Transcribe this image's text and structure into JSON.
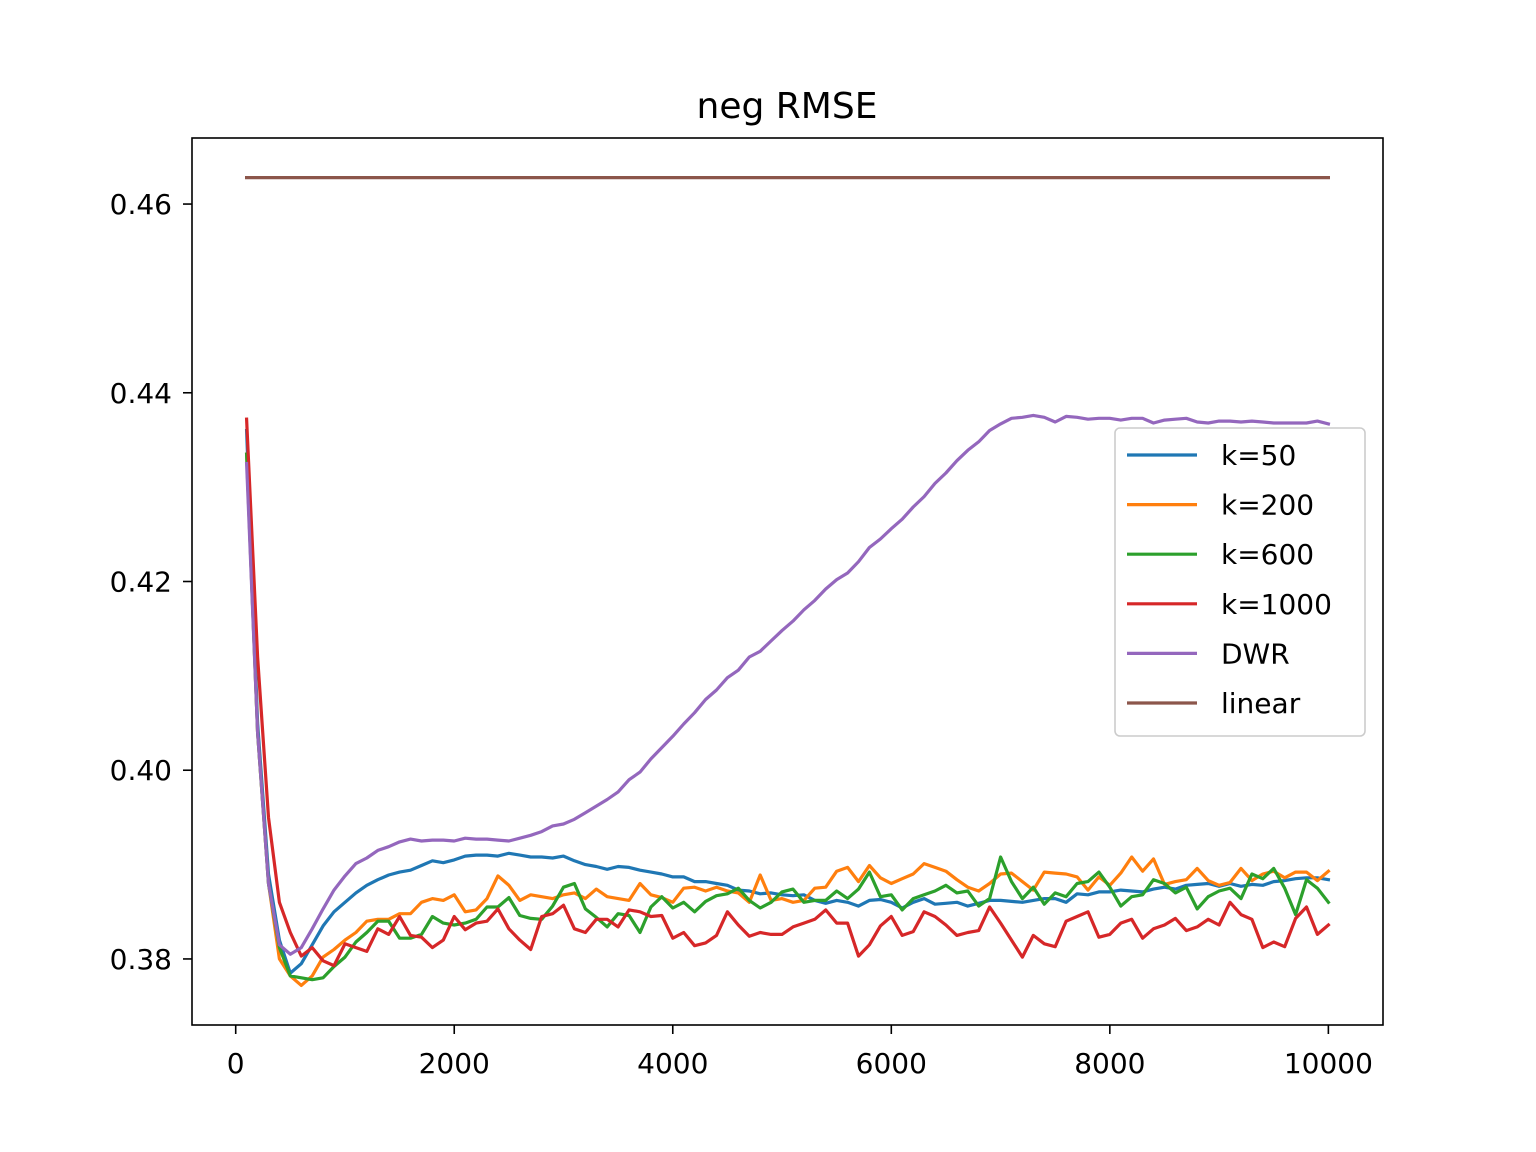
{
  "chart_data": {
    "type": "line",
    "title": "neg RMSE",
    "xlabel": "",
    "ylabel": "",
    "xlim": [
      -400,
      10500
    ],
    "ylim": [
      0.373,
      0.467
    ],
    "xticks": [
      0,
      2000,
      4000,
      6000,
      8000,
      10000
    ],
    "xtick_labels": [
      "0",
      "2000",
      "4000",
      "6000",
      "8000",
      "10000"
    ],
    "yticks": [
      0.38,
      0.4,
      0.42,
      0.44,
      0.46
    ],
    "ytick_labels": [
      "0.38",
      "0.40",
      "0.42",
      "0.44",
      "0.46"
    ],
    "grid": false,
    "legend_position": "center-right",
    "x": [
      100,
      200,
      300,
      400,
      500,
      600,
      700,
      800,
      900,
      1000,
      1100,
      1200,
      1300,
      1400,
      1500,
      1600,
      1700,
      1800,
      1900,
      2000,
      2100,
      2200,
      2300,
      2400,
      2500,
      2600,
      2700,
      2800,
      2900,
      3000,
      3100,
      3200,
      3300,
      3400,
      3500,
      3600,
      3700,
      3800,
      3900,
      4000,
      4100,
      4200,
      4300,
      4400,
      4500,
      4600,
      4700,
      4800,
      4900,
      5000,
      5100,
      5200,
      5300,
      5400,
      5500,
      5600,
      5700,
      5800,
      5900,
      6000,
      6100,
      6200,
      6300,
      6400,
      6500,
      6600,
      6700,
      6800,
      6900,
      7000,
      7100,
      7200,
      7300,
      7400,
      7500,
      7600,
      7700,
      7800,
      7900,
      8000,
      8100,
      8200,
      8300,
      8400,
      8500,
      8600,
      8700,
      8800,
      8900,
      9000,
      9100,
      9200,
      9300,
      9400,
      9500,
      9600,
      9700,
      9800,
      9900,
      10000
    ],
    "series": [
      {
        "name": "k=50",
        "color": "#1f77b4",
        "values": [
          0.436,
          0.405,
          0.389,
          0.382,
          0.3785,
          0.3795,
          0.3815,
          0.3835,
          0.385,
          0.386,
          0.387,
          0.3878,
          0.3884,
          0.3889,
          0.3892,
          0.3894,
          0.3899,
          0.3904,
          0.3902,
          0.3905,
          0.3909,
          0.391,
          0.391,
          0.3909,
          0.3912,
          0.391,
          0.3908,
          0.3908,
          0.3907,
          0.3909,
          0.3904,
          0.39,
          0.3898,
          0.3895,
          0.3898,
          0.3897,
          0.3894,
          0.3892,
          0.389,
          0.3887,
          0.3887,
          0.3882,
          0.3882,
          0.388,
          0.3878,
          0.3873,
          0.3872,
          0.3869,
          0.387,
          0.3868,
          0.3867,
          0.3868,
          0.3862,
          0.3859,
          0.3862,
          0.386,
          0.3856,
          0.3862,
          0.3863,
          0.386,
          0.3854,
          0.386,
          0.3864,
          0.3858,
          0.3859,
          0.386,
          0.3856,
          0.3859,
          0.3862,
          0.3862,
          0.3861,
          0.386,
          0.3862,
          0.3864,
          0.3864,
          0.386,
          0.3869,
          0.3868,
          0.3871,
          0.3871,
          0.3873,
          0.3872,
          0.3871,
          0.3874,
          0.3876,
          0.3874,
          0.3878,
          0.3879,
          0.388,
          0.3877,
          0.388,
          0.3877,
          0.3879,
          0.3878,
          0.3882,
          0.3883,
          0.3885,
          0.3886,
          0.3886,
          0.3884
        ]
      },
      {
        "name": "k=200",
        "color": "#ff7f0e",
        "values": [
          0.4335,
          0.404,
          0.388,
          0.38,
          0.3782,
          0.3772,
          0.3782,
          0.3802,
          0.381,
          0.382,
          0.3828,
          0.384,
          0.3842,
          0.3842,
          0.3848,
          0.3848,
          0.386,
          0.3864,
          0.3862,
          0.3868,
          0.385,
          0.3852,
          0.3864,
          0.3888,
          0.3878,
          0.3862,
          0.3868,
          0.3866,
          0.3864,
          0.3868,
          0.387,
          0.3864,
          0.3874,
          0.3866,
          0.3864,
          0.3862,
          0.388,
          0.3868,
          0.3865,
          0.386,
          0.3875,
          0.3876,
          0.3872,
          0.3876,
          0.3872,
          0.387,
          0.386,
          0.3889,
          0.3862,
          0.3864,
          0.386,
          0.3862,
          0.3875,
          0.3876,
          0.3893,
          0.3897,
          0.3882,
          0.3899,
          0.3886,
          0.388,
          0.3885,
          0.389,
          0.3901,
          0.3897,
          0.3893,
          0.3884,
          0.3876,
          0.3872,
          0.388,
          0.389,
          0.3891,
          0.3882,
          0.3873,
          0.3892,
          0.3891,
          0.389,
          0.3887,
          0.3873,
          0.3887,
          0.3878,
          0.3891,
          0.3908,
          0.3893,
          0.3906,
          0.3879,
          0.3882,
          0.3884,
          0.3896,
          0.3883,
          0.3878,
          0.3881,
          0.3896,
          0.3883,
          0.389,
          0.3893,
          0.3886,
          0.3892,
          0.3892,
          0.3883,
          0.3893
        ]
      },
      {
        "name": "k=600",
        "color": "#2ca02c",
        "values": [
          0.4335,
          0.404,
          0.388,
          0.3812,
          0.3782,
          0.378,
          0.3778,
          0.378,
          0.3792,
          0.3802,
          0.3818,
          0.3828,
          0.384,
          0.384,
          0.3822,
          0.3822,
          0.3826,
          0.3845,
          0.3838,
          0.3836,
          0.3838,
          0.3842,
          0.3855,
          0.3855,
          0.3865,
          0.3846,
          0.3843,
          0.3842,
          0.3856,
          0.3876,
          0.388,
          0.3853,
          0.3844,
          0.3834,
          0.3848,
          0.3846,
          0.3828,
          0.3855,
          0.3866,
          0.3854,
          0.386,
          0.385,
          0.3861,
          0.3867,
          0.3869,
          0.3875,
          0.3862,
          0.3854,
          0.386,
          0.3871,
          0.3874,
          0.386,
          0.3862,
          0.3862,
          0.3872,
          0.3864,
          0.3874,
          0.3892,
          0.3866,
          0.3868,
          0.3852,
          0.3864,
          0.3868,
          0.3872,
          0.3878,
          0.387,
          0.3872,
          0.3856,
          0.3864,
          0.3908,
          0.3882,
          0.3864,
          0.3876,
          0.3858,
          0.387,
          0.3866,
          0.388,
          0.3882,
          0.3892,
          0.3876,
          0.3856,
          0.3866,
          0.3868,
          0.3884,
          0.388,
          0.387,
          0.3876,
          0.3853,
          0.3866,
          0.3872,
          0.3875,
          0.3864,
          0.389,
          0.3885,
          0.3896,
          0.3875,
          0.3847,
          0.3884,
          0.3875,
          0.386
        ]
      },
      {
        "name": "k=1000",
        "color": "#d62728",
        "values": [
          0.4372,
          0.412,
          0.395,
          0.386,
          0.3828,
          0.3803,
          0.3812,
          0.3798,
          0.3793,
          0.3816,
          0.3812,
          0.3808,
          0.3832,
          0.3826,
          0.3845,
          0.3825,
          0.3823,
          0.3812,
          0.382,
          0.3845,
          0.3831,
          0.3838,
          0.384,
          0.3853,
          0.3832,
          0.382,
          0.381,
          0.3845,
          0.3848,
          0.3857,
          0.3832,
          0.3828,
          0.3842,
          0.3842,
          0.3834,
          0.3852,
          0.385,
          0.3845,
          0.3846,
          0.3822,
          0.3828,
          0.3814,
          0.3817,
          0.3825,
          0.385,
          0.3836,
          0.3824,
          0.3828,
          0.3826,
          0.3826,
          0.3834,
          0.3838,
          0.3842,
          0.3852,
          0.3838,
          0.3838,
          0.3803,
          0.3815,
          0.3835,
          0.3845,
          0.3825,
          0.3829,
          0.385,
          0.3845,
          0.3836,
          0.3825,
          0.3828,
          0.383,
          0.3855,
          0.3838,
          0.382,
          0.3802,
          0.3825,
          0.3816,
          0.3813,
          0.384,
          0.3845,
          0.385,
          0.3823,
          0.3826,
          0.3838,
          0.3842,
          0.3822,
          0.3832,
          0.3836,
          0.3843,
          0.383,
          0.3834,
          0.3842,
          0.3836,
          0.386,
          0.3847,
          0.3842,
          0.3812,
          0.3818,
          0.3813,
          0.3843,
          0.3855,
          0.3826,
          0.3836
        ]
      },
      {
        "name": "DWR",
        "color": "#9467bd",
        "values": [
          0.4325,
          0.404,
          0.388,
          0.3815,
          0.3805,
          0.3812,
          0.3832,
          0.3853,
          0.3873,
          0.3888,
          0.3901,
          0.3907,
          0.3915,
          0.3919,
          0.3924,
          0.3927,
          0.3925,
          0.3926,
          0.3926,
          0.3925,
          0.3928,
          0.3927,
          0.3927,
          0.3926,
          0.3925,
          0.3928,
          0.3931,
          0.3935,
          0.3941,
          0.3943,
          0.3948,
          0.3955,
          0.3962,
          0.3969,
          0.3977,
          0.399,
          0.3998,
          0.4012,
          0.4024,
          0.4036,
          0.4049,
          0.4061,
          0.4075,
          0.4085,
          0.4098,
          0.4106,
          0.412,
          0.4126,
          0.4137,
          0.4148,
          0.4158,
          0.417,
          0.418,
          0.4192,
          0.4202,
          0.4209,
          0.4221,
          0.4236,
          0.4245,
          0.4256,
          0.4266,
          0.4279,
          0.429,
          0.4304,
          0.4315,
          0.4328,
          0.4339,
          0.4348,
          0.436,
          0.4367,
          0.4373,
          0.4374,
          0.4376,
          0.4374,
          0.4369,
          0.4375,
          0.4374,
          0.4372,
          0.4373,
          0.4373,
          0.4371,
          0.4373,
          0.4373,
          0.4368,
          0.4371,
          0.4372,
          0.4373,
          0.4369,
          0.4368,
          0.437,
          0.437,
          0.4369,
          0.437,
          0.4369,
          0.4368,
          0.4368,
          0.4368,
          0.4368,
          0.437,
          0.4367
        ]
      },
      {
        "name": "linear",
        "color": "#8c564b",
        "values": [
          0.4628,
          0.4628,
          0.4628,
          0.4628,
          0.4628,
          0.4628,
          0.4628,
          0.4628,
          0.4628,
          0.4628,
          0.4628,
          0.4628,
          0.4628,
          0.4628,
          0.4628,
          0.4628,
          0.4628,
          0.4628,
          0.4628,
          0.4628,
          0.4628,
          0.4628,
          0.4628,
          0.4628,
          0.4628,
          0.4628,
          0.4628,
          0.4628,
          0.4628,
          0.4628,
          0.4628,
          0.4628,
          0.4628,
          0.4628,
          0.4628,
          0.4628,
          0.4628,
          0.4628,
          0.4628,
          0.4628,
          0.4628,
          0.4628,
          0.4628,
          0.4628,
          0.4628,
          0.4628,
          0.4628,
          0.4628,
          0.4628,
          0.4628,
          0.4628,
          0.4628,
          0.4628,
          0.4628,
          0.4628,
          0.4628,
          0.4628,
          0.4628,
          0.4628,
          0.4628,
          0.4628,
          0.4628,
          0.4628,
          0.4628,
          0.4628,
          0.4628,
          0.4628,
          0.4628,
          0.4628,
          0.4628,
          0.4628,
          0.4628,
          0.4628,
          0.4628,
          0.4628,
          0.4628,
          0.4628,
          0.4628,
          0.4628,
          0.4628,
          0.4628,
          0.4628,
          0.4628,
          0.4628,
          0.4628,
          0.4628,
          0.4628,
          0.4628,
          0.4628,
          0.4628,
          0.4628,
          0.4628,
          0.4628,
          0.4628,
          0.4628,
          0.4628,
          0.4628,
          0.4628,
          0.4628,
          0.4628
        ]
      }
    ]
  }
}
